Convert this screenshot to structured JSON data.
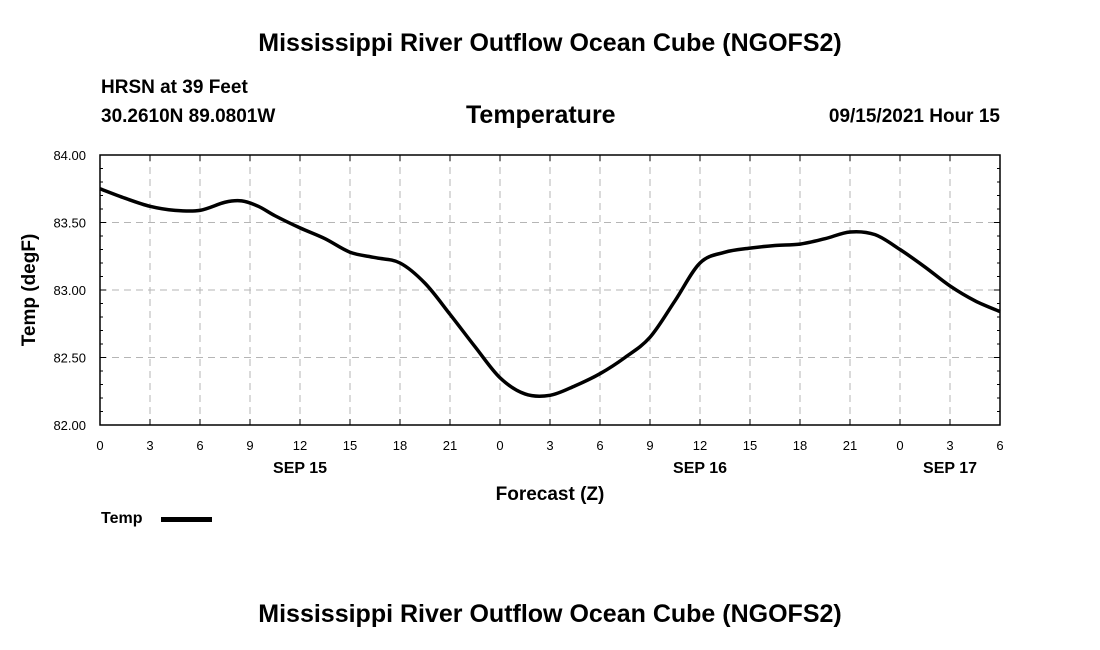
{
  "header": {
    "main_title": "Mississippi River Outflow Ocean Cube (NGOFS2)",
    "station": "HRSN at 39 Feet",
    "coordinates": "30.2610N  89.0801W",
    "datetime": "09/15/2021 Hour 15",
    "footer_title": "Mississippi River Outflow Ocean Cube (NGOFS2)"
  },
  "legend": {
    "label": "Temp",
    "color": "#000000"
  },
  "chart_data": {
    "type": "line",
    "title": "Temperature",
    "xlabel": "Forecast (Z)",
    "ylabel": "Temp (degF)",
    "xlim": [
      0,
      54
    ],
    "ylim": [
      82.0,
      84.0
    ],
    "grid": true,
    "x_ticks": [
      0,
      3,
      6,
      9,
      12,
      15,
      18,
      21,
      24,
      27,
      30,
      33,
      36,
      39,
      42,
      45,
      48,
      51,
      54
    ],
    "x_tick_labels": [
      "0",
      "3",
      "6",
      "9",
      "12",
      "15",
      "18",
      "21",
      "0",
      "3",
      "6",
      "9",
      "12",
      "15",
      "18",
      "21",
      "0",
      "3",
      "6"
    ],
    "y_ticks": [
      82.0,
      82.5,
      83.0,
      83.5,
      84.0
    ],
    "y_tick_labels": [
      "82.00",
      "82.50",
      "83.00",
      "83.50",
      "84.00"
    ],
    "day_labels": [
      {
        "x": 12,
        "label": "SEP 15"
      },
      {
        "x": 36,
        "label": "SEP 16"
      },
      {
        "x": 51,
        "label": "SEP 17"
      }
    ],
    "series": [
      {
        "name": "Temp",
        "color": "#000000",
        "x": [
          0,
          1.5,
          3,
          4.5,
          6,
          7.5,
          8.5,
          9.5,
          10.5,
          12,
          13.5,
          15,
          16.5,
          18,
          19.5,
          21,
          22.5,
          24,
          25.5,
          27,
          28.5,
          30,
          31.5,
          33,
          34.5,
          36,
          37.5,
          39,
          40.5,
          42,
          43.5,
          45,
          46.5,
          48,
          49.5,
          51,
          52.5,
          54
        ],
        "y": [
          83.75,
          83.68,
          83.62,
          83.59,
          83.59,
          83.65,
          83.66,
          83.62,
          83.55,
          83.46,
          83.38,
          83.28,
          83.24,
          83.2,
          83.05,
          82.82,
          82.58,
          82.35,
          82.23,
          82.22,
          82.29,
          82.38,
          82.5,
          82.65,
          82.92,
          83.2,
          83.28,
          83.31,
          83.33,
          83.34,
          83.38,
          83.43,
          83.41,
          83.3,
          83.17,
          83.03,
          82.92,
          82.84
        ]
      }
    ]
  }
}
